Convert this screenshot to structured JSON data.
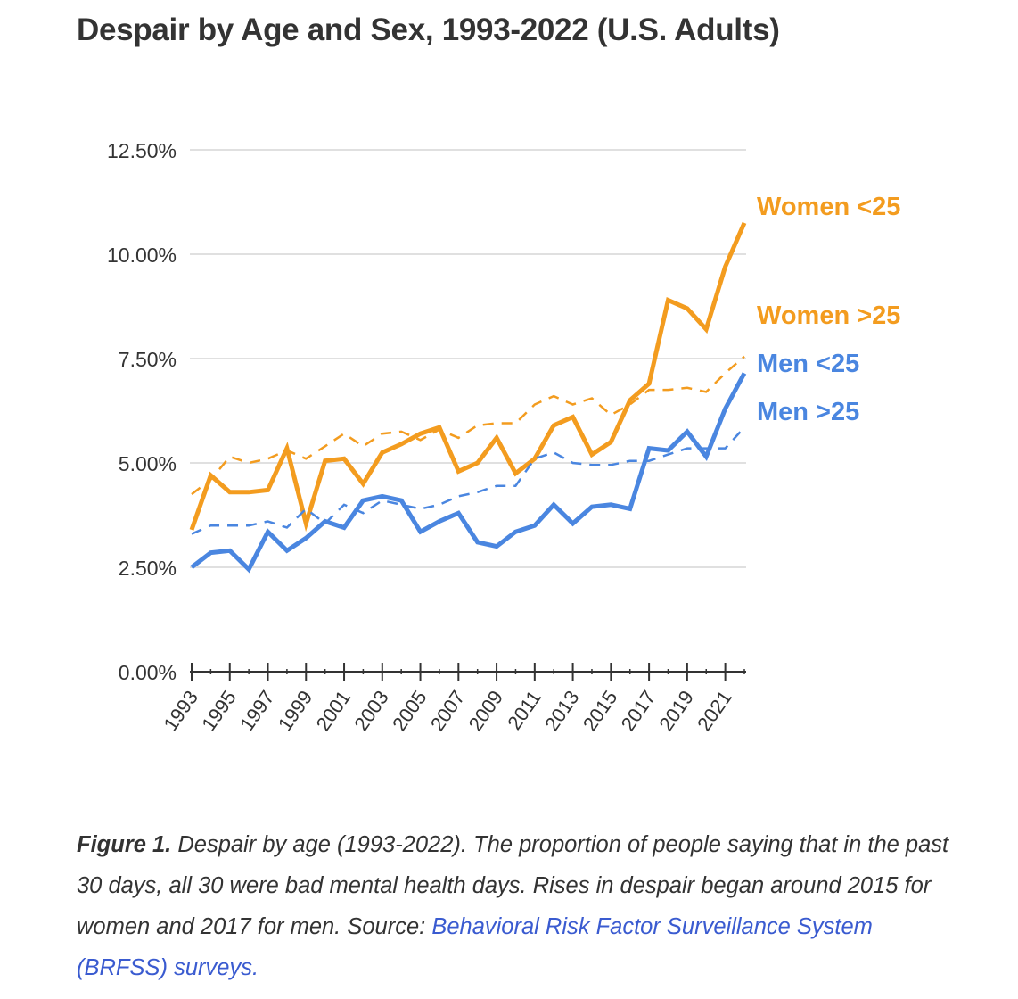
{
  "title": "Despair by Age and Sex, 1993-2022 (U.S. Adults)",
  "caption": {
    "lead": "Figure 1.",
    "text": " Despair by age (1993-2022). The proportion of people saying that in the past 30 days, all 30 were bad mental health days. Rises in despair began around 2015 for women and 2017 for men. Source: ",
    "link": "Behavioral Risk Factor Surveillance System (BRFSS) surveys."
  },
  "chart_data": {
    "type": "line",
    "title": "Despair by Age and Sex, 1993-2022 (U.S. Adults)",
    "xlabel": "",
    "ylabel": "",
    "ylim": [
      0,
      12.5
    ],
    "xlim": [
      1993,
      2022
    ],
    "yticks": [
      "0.00%",
      "2.50%",
      "5.00%",
      "7.50%",
      "10.00%",
      "12.50%"
    ],
    "xticks": [
      "1993",
      "1995",
      "1997",
      "1999",
      "2001",
      "2003",
      "2005",
      "2007",
      "2009",
      "2011",
      "2013",
      "2015",
      "2017",
      "2019",
      "2021"
    ],
    "x": [
      1993,
      1994,
      1995,
      1996,
      1997,
      1998,
      1999,
      2000,
      2001,
      2002,
      2003,
      2004,
      2005,
      2006,
      2007,
      2008,
      2009,
      2010,
      2011,
      2012,
      2013,
      2014,
      2015,
      2016,
      2017,
      2018,
      2019,
      2020,
      2021,
      2022
    ],
    "grid": true,
    "legend": "inline-right",
    "series": [
      {
        "name": "Women <25",
        "color": "#f39c1f",
        "style": "solid",
        "values": [
          3.4,
          4.7,
          4.3,
          4.3,
          4.35,
          5.35,
          3.55,
          5.05,
          5.1,
          4.5,
          5.25,
          5.45,
          5.7,
          5.85,
          4.8,
          5.0,
          5.6,
          4.75,
          5.1,
          5.9,
          6.1,
          5.2,
          5.5,
          6.5,
          6.9,
          8.9,
          8.7,
          8.2,
          9.7,
          10.75
        ]
      },
      {
        "name": "Women >25",
        "color": "#f39c1f",
        "style": "dashed",
        "values": [
          4.25,
          4.6,
          5.15,
          5.0,
          5.1,
          5.3,
          5.1,
          5.4,
          5.7,
          5.4,
          5.7,
          5.75,
          5.55,
          5.8,
          5.6,
          5.9,
          5.95,
          5.95,
          6.4,
          6.6,
          6.4,
          6.55,
          6.15,
          6.4,
          6.75,
          6.75,
          6.8,
          6.7,
          7.15,
          7.55
        ]
      },
      {
        "name": "Men <25",
        "color": "#4a86e0",
        "style": "solid",
        "values": [
          2.5,
          2.85,
          2.9,
          2.45,
          3.35,
          2.9,
          3.2,
          3.6,
          3.45,
          4.1,
          4.2,
          4.1,
          3.35,
          3.6,
          3.8,
          3.1,
          3.0,
          3.35,
          3.5,
          4.0,
          3.55,
          3.95,
          4.0,
          3.9,
          5.35,
          5.3,
          5.75,
          5.15,
          6.3,
          7.15
        ]
      },
      {
        "name": "Men >25",
        "color": "#4a86e0",
        "style": "dashed",
        "values": [
          3.3,
          3.5,
          3.5,
          3.5,
          3.6,
          3.45,
          3.9,
          3.55,
          4.0,
          3.8,
          4.1,
          4.0,
          3.9,
          4.0,
          4.2,
          4.3,
          4.45,
          4.45,
          5.1,
          5.25,
          5.0,
          4.95,
          4.95,
          5.05,
          5.05,
          5.2,
          5.35,
          5.35,
          5.35,
          5.85
        ]
      }
    ]
  }
}
